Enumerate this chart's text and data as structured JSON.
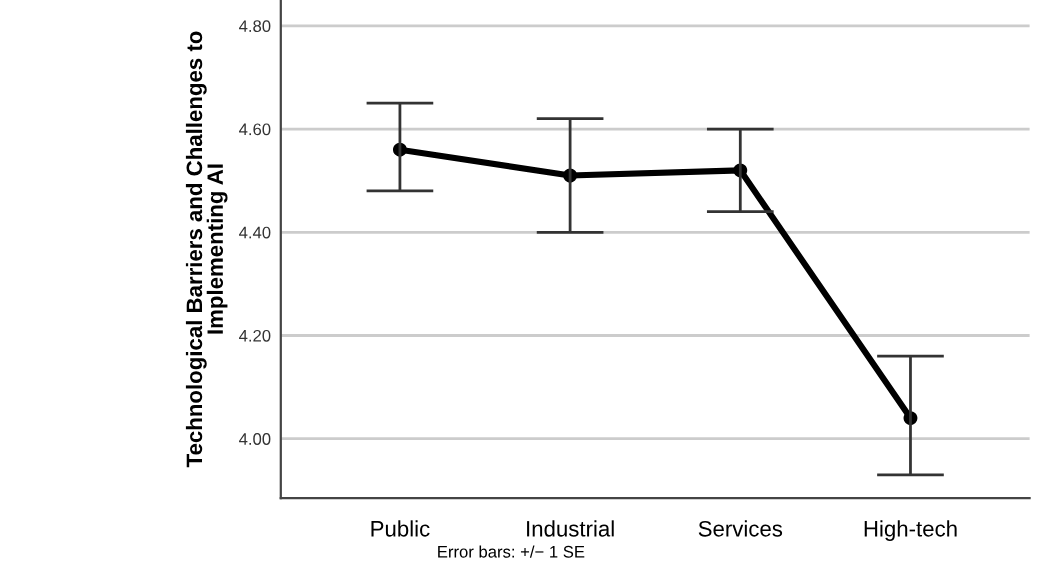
{
  "chart_data": {
    "type": "line",
    "ylabel": "Technological Barriers and Challenges to\nImplementing AI",
    "categories": [
      "Public",
      "Industrial",
      "Services",
      "High-tech"
    ],
    "series": [
      {
        "color": "#000000",
        "values": [
          4.56,
          4.51,
          4.52,
          4.04
        ],
        "errors": [
          [
            4.48,
            4.65
          ],
          [
            4.4,
            4.62
          ],
          [
            4.44,
            4.6
          ],
          [
            3.93,
            4.16
          ]
        ]
      }
    ],
    "ylim": [
      3.885,
      4.85
    ],
    "yticks": [
      {
        "value": 4.0,
        "label": "4.00"
      },
      {
        "value": 4.2,
        "label": "4.20"
      },
      {
        "value": 4.4,
        "label": "4.40"
      },
      {
        "value": 4.6,
        "label": "4.60"
      },
      {
        "value": 4.8,
        "label": "4.80"
      }
    ],
    "grid": "y",
    "marker": "circle",
    "line_style": "solid",
    "annotations": [
      "Error bars: +/− 1 SE"
    ]
  }
}
